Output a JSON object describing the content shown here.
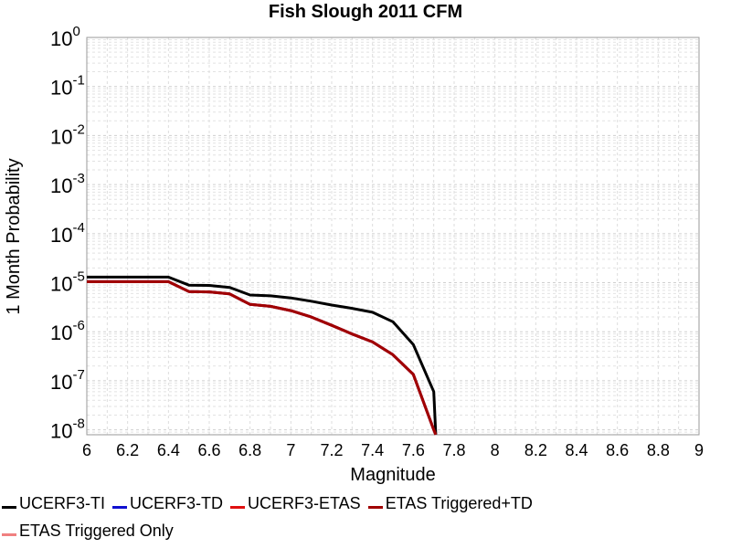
{
  "chart_data": {
    "type": "line",
    "title": "Fish Slough 2011 CFM",
    "xlabel": "Magnitude",
    "ylabel": "1 Month Probability",
    "xlim": [
      6,
      9
    ],
    "ylim_log10": [
      -8.1,
      0
    ],
    "yscale": "log",
    "grid": true,
    "legend_position": "bottom",
    "x_ticks": [
      "6",
      "6.2",
      "6.4",
      "6.6",
      "6.8",
      "7",
      "7.2",
      "7.4",
      "7.6",
      "7.8",
      "8",
      "8.2",
      "8.4",
      "8.6",
      "8.8",
      "9"
    ],
    "y_ticks": [
      {
        "base": "10",
        "exp": "0",
        "value": 1
      },
      {
        "base": "10",
        "exp": "-1",
        "value": 0.1
      },
      {
        "base": "10",
        "exp": "-2",
        "value": 0.01
      },
      {
        "base": "10",
        "exp": "-3",
        "value": 0.001
      },
      {
        "base": "10",
        "exp": "-4",
        "value": 0.0001
      },
      {
        "base": "10",
        "exp": "-5",
        "value": 1e-05
      },
      {
        "base": "10",
        "exp": "-6",
        "value": 1e-06
      },
      {
        "base": "10",
        "exp": "-7",
        "value": 1e-07
      },
      {
        "base": "10",
        "exp": "-8",
        "value": 1e-08
      }
    ],
    "series": [
      {
        "name": "UCERF3-TI",
        "color": "#000000",
        "x": [
          6.0,
          6.1,
          6.2,
          6.3,
          6.4,
          6.5,
          6.6,
          6.7,
          6.8,
          6.9,
          7.0,
          7.1,
          7.2,
          7.3,
          7.4,
          7.5,
          7.6,
          7.7,
          7.71
        ],
        "y": [
          1.3e-05,
          1.3e-05,
          1.3e-05,
          1.3e-05,
          1.3e-05,
          8.9e-06,
          8.8e-06,
          8e-06,
          5.6e-06,
          5.4e-06,
          4.9e-06,
          4.2e-06,
          3.5e-06,
          3e-06,
          2.5e-06,
          1.6e-06,
          5.5e-07,
          6e-08,
          8e-09
        ]
      },
      {
        "name": "UCERF3-TD",
        "color": "#1010d0",
        "x": [
          6.0,
          6.1,
          6.2,
          6.3,
          6.4,
          6.5,
          6.6,
          6.7,
          6.8,
          6.9,
          7.0,
          7.1,
          7.2,
          7.3,
          7.4,
          7.5,
          7.6,
          7.7,
          7.71
        ],
        "y": [
          1.05e-05,
          1.05e-05,
          1.05e-05,
          1.05e-05,
          1.05e-05,
          6.6e-06,
          6.5e-06,
          5.9e-06,
          3.6e-06,
          3.3e-06,
          2.7e-06,
          2e-06,
          1.35e-06,
          9e-07,
          6.2e-07,
          3.4e-07,
          1.35e-07,
          1e-08,
          8e-09
        ]
      },
      {
        "name": "UCERF3-ETAS",
        "color": "#e01010",
        "x": [
          6.0,
          6.1,
          6.2,
          6.3,
          6.4,
          6.5,
          6.6,
          6.7,
          6.8,
          6.9,
          7.0,
          7.1,
          7.2,
          7.3,
          7.4,
          7.5,
          7.6,
          7.7,
          7.71
        ],
        "y": [
          1.05e-05,
          1.05e-05,
          1.05e-05,
          1.05e-05,
          1.05e-05,
          6.6e-06,
          6.5e-06,
          5.9e-06,
          3.6e-06,
          3.3e-06,
          2.7e-06,
          2e-06,
          1.35e-06,
          9e-07,
          6.2e-07,
          3.4e-07,
          1.35e-07,
          1e-08,
          8e-09
        ]
      },
      {
        "name": "ETAS Triggered+TD",
        "color": "#a00000",
        "x": [
          6.0,
          6.1,
          6.2,
          6.3,
          6.4,
          6.5,
          6.6,
          6.7,
          6.8,
          6.9,
          7.0,
          7.1,
          7.2,
          7.3,
          7.4,
          7.5,
          7.6,
          7.7,
          7.71
        ],
        "y": [
          1.05e-05,
          1.05e-05,
          1.05e-05,
          1.05e-05,
          1.05e-05,
          6.6e-06,
          6.5e-06,
          5.9e-06,
          3.6e-06,
          3.3e-06,
          2.7e-06,
          2e-06,
          1.35e-06,
          9e-07,
          6.2e-07,
          3.4e-07,
          1.35e-07,
          1e-08,
          8e-09
        ]
      },
      {
        "name": "ETAS Triggered Only",
        "color": "#f08080",
        "x": [],
        "y": []
      }
    ]
  }
}
